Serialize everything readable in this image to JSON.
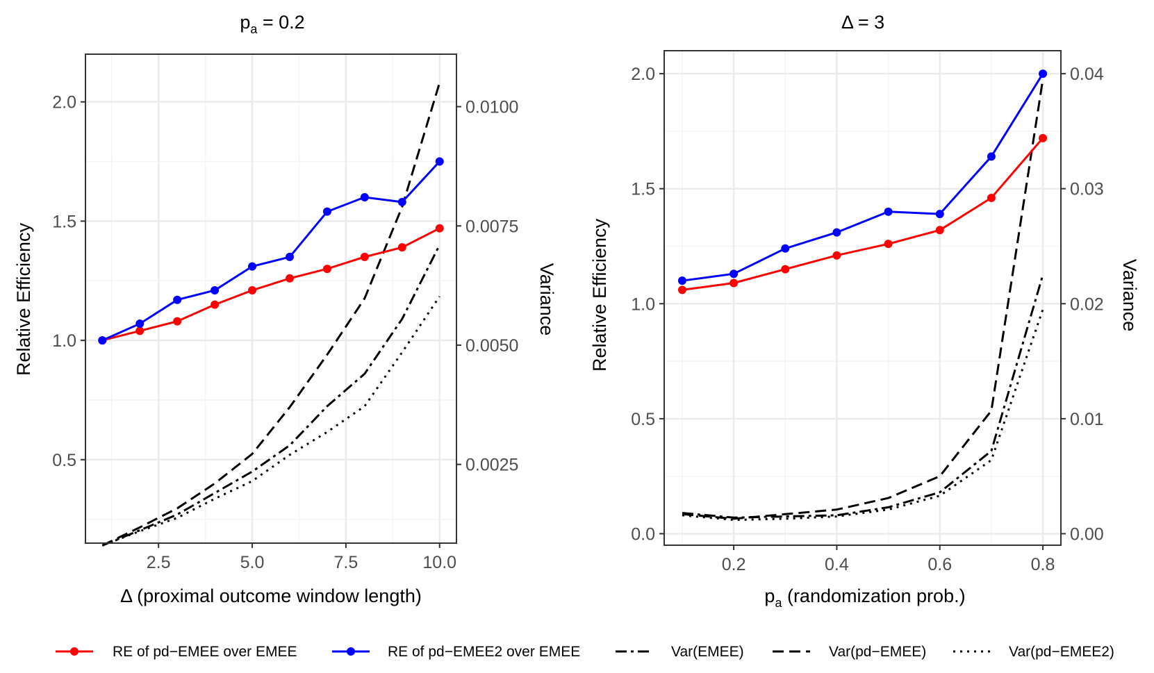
{
  "chart_data": [
    {
      "type": "line",
      "panel": "left",
      "title_main": "p",
      "title_sub": "a",
      "title_rest": " = 0.2",
      "xlabel": "Δ (proximal outcome window length)",
      "ylabel_left": "Relative Efficiency",
      "ylabel_right": "Variance",
      "xlim": [
        0.55,
        10.45
      ],
      "ylim_left": [
        0.15,
        2.2
      ],
      "ylim_right": [
        0.00085,
        0.0111
      ],
      "x_ticks": [
        2.5,
        5.0,
        7.5,
        10.0
      ],
      "x_tick_labels": [
        "2.5",
        "5.0",
        "7.5",
        "10.0"
      ],
      "y_ticks_left": [
        0.5,
        1.0,
        1.5,
        2.0
      ],
      "y_tick_labels_left": [
        "0.5",
        "1.0",
        "1.5",
        "2.0"
      ],
      "y_ticks_right": [
        0.0025,
        0.005,
        0.0075,
        0.01
      ],
      "y_tick_labels_right": [
        "0.0025",
        "0.0050",
        "0.0075",
        "0.0100"
      ],
      "x": [
        1,
        2,
        3,
        4,
        5,
        6,
        7,
        8,
        9,
        10
      ],
      "re_series": [
        {
          "name": "RE of pd−EMEE over EMEE",
          "values": [
            1.0,
            1.04,
            1.08,
            1.15,
            1.21,
            1.26,
            1.3,
            1.35,
            1.39,
            1.47
          ]
        },
        {
          "name": "RE of pd−EMEE2 over EMEE",
          "values": [
            1.0,
            1.07,
            1.17,
            1.21,
            1.31,
            1.35,
            1.54,
            1.6,
            1.58,
            1.75
          ]
        }
      ],
      "var_series": [
        {
          "name": "Var(EMEE)",
          "values": [
            0.0008,
            0.00112,
            0.00145,
            0.0019,
            0.00235,
            0.0029,
            0.00372,
            0.0044,
            0.00555,
            0.0071
          ]
        },
        {
          "name": "Var(pd−EMEE)",
          "values": [
            0.0008,
            0.00118,
            0.00158,
            0.0021,
            0.00272,
            0.0037,
            0.0048,
            0.00598,
            0.0079,
            0.0105
          ]
        },
        {
          "name": "Var(pd−EMEE2)",
          "values": [
            0.0008,
            0.0011,
            0.00138,
            0.00178,
            0.00215,
            0.0027,
            0.00318,
            0.00372,
            0.00485,
            0.00602
          ]
        }
      ]
    },
    {
      "type": "line",
      "panel": "right",
      "title_main": "Δ",
      "title_sub": "",
      "title_rest": " = 3",
      "xlabel_main": "p",
      "xlabel_sub": "a",
      "xlabel_rest": " (randomization prob.)",
      "ylabel_left": "Relative Efficiency",
      "ylabel_right": "Variance",
      "xlim": [
        0.065,
        0.835
      ],
      "ylim_left": [
        -0.05,
        2.1
      ],
      "ylim_right": [
        -0.001,
        0.042
      ],
      "x_ticks": [
        0.2,
        0.4,
        0.6,
        0.8
      ],
      "x_tick_labels": [
        "0.2",
        "0.4",
        "0.6",
        "0.8"
      ],
      "y_ticks_left": [
        0.0,
        0.5,
        1.0,
        1.5,
        2.0
      ],
      "y_tick_labels_left": [
        "0.0",
        "0.5",
        "1.0",
        "1.5",
        "2.0"
      ],
      "y_ticks_right": [
        0.0,
        0.01,
        0.02,
        0.03,
        0.04
      ],
      "y_tick_labels_right": [
        "0.00",
        "0.01",
        "0.02",
        "0.03",
        "0.04"
      ],
      "x": [
        0.1,
        0.2,
        0.3,
        0.4,
        0.5,
        0.6,
        0.7,
        0.8
      ],
      "re_series": [
        {
          "name": "RE of pd−EMEE over EMEE",
          "values": [
            1.06,
            1.09,
            1.15,
            1.21,
            1.26,
            1.32,
            1.46,
            1.72
          ]
        },
        {
          "name": "RE of pd−EMEE2 over EMEE",
          "values": [
            1.1,
            1.13,
            1.24,
            1.31,
            1.4,
            1.39,
            1.64,
            2.0
          ]
        }
      ],
      "var_series": [
        {
          "name": "Var(EMEE)",
          "values": [
            0.0018,
            0.0014,
            0.0015,
            0.0016,
            0.0023,
            0.0036,
            0.0072,
            0.0225
          ]
        },
        {
          "name": "Var(pd−EMEE)",
          "values": [
            0.0017,
            0.0013,
            0.0017,
            0.0021,
            0.0031,
            0.005,
            0.0107,
            0.0395
          ]
        },
        {
          "name": "Var(pd−EMEE2)",
          "values": [
            0.0016,
            0.0012,
            0.0013,
            0.0015,
            0.0021,
            0.0033,
            0.0064,
            0.0195
          ]
        }
      ]
    }
  ],
  "legend": [
    {
      "label": "RE of pd−EMEE over EMEE",
      "kind": "re",
      "color": "#ff0000"
    },
    {
      "label": "RE of pd−EMEE2 over EMEE",
      "kind": "re",
      "color": "#0000ff"
    },
    {
      "label": "Var(EMEE)",
      "kind": "var",
      "color": "#000000"
    },
    {
      "label": "Var(pd−EMEE)",
      "kind": "var",
      "color": "#000000"
    },
    {
      "label": "Var(pd−EMEE2)",
      "kind": "var",
      "color": "#000000"
    }
  ],
  "colors": {
    "re1": "#ff0000",
    "re2": "#0000ff",
    "var": "#000000",
    "grid_major": "#ebebeb",
    "grid_minor": "#f4f4f4",
    "panel_border": "#333333"
  }
}
